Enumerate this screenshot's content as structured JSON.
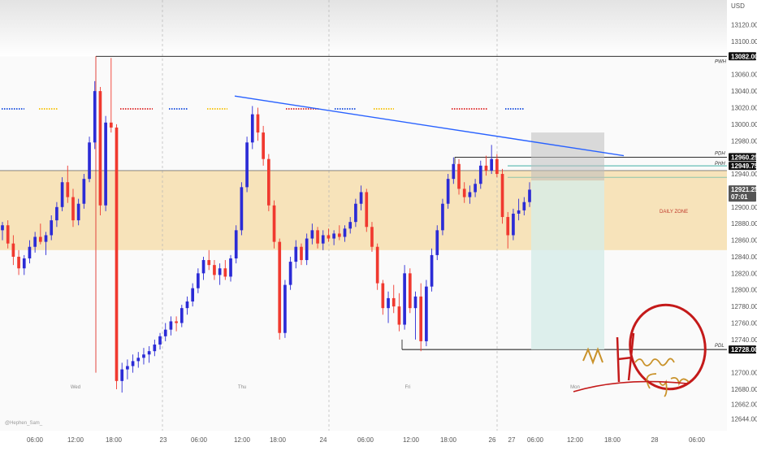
{
  "chart_data": {
    "type": "candlestick",
    "currency": "USD",
    "watermark": "@Hephen_Sam_",
    "colors": {
      "up": "#2b2bd6",
      "down": "#f0392f",
      "zone": "#f6deae",
      "top_band": "#e3e3e3",
      "target_box": "#d6ece8",
      "stop_box": "#bdbdbd",
      "trendline": "#2962ff",
      "signature": "#c41a1a",
      "signature_gold": "#c9922a"
    },
    "y_axis": {
      "min": 12630,
      "max": 13150,
      "tick_labels": [
        "13120.00",
        "13100.00",
        "13082.00",
        "13060.00",
        "13040.00",
        "13020.00",
        "13000.00",
        "12980.00",
        "12960.25",
        "12949.75",
        "12940.00",
        "12921.25",
        "12900.00",
        "12880.00",
        "12860.00",
        "12840.00",
        "12820.00",
        "12800.00",
        "12780.00",
        "12760.00",
        "12740.00",
        "12728.00",
        "12700.00",
        "12680.00",
        "12662.00",
        "12644.00"
      ]
    },
    "x_axis": {
      "tick_labels": [
        "06:00",
        "12:00",
        "18:00",
        "23",
        "06:00",
        "12:00",
        "18:00",
        "24",
        "06:00",
        "12:00",
        "18:00",
        "26",
        "27",
        "06:00",
        "12:00",
        "18:00",
        "28",
        "06:00"
      ],
      "day_labels": [
        "Wed",
        "Thu",
        "Fri",
        "Mon"
      ]
    },
    "levels": [
      {
        "name": "PWH",
        "price": 13082.0,
        "label": "13082.00"
      },
      {
        "name": "PDH",
        "price": 12960.25,
        "label": "12960.25"
      },
      {
        "name": "PHH",
        "price": 12949.75,
        "label": "12949.75"
      },
      {
        "name": "PDL",
        "price": 12728.0,
        "label": "12728.00"
      }
    ],
    "current_price": {
      "price": 12921.25,
      "label": "12921.25",
      "countdown": "07:01"
    },
    "zone": {
      "label": "DAILY ZONE",
      "top": 12944,
      "bottom": 12848
    },
    "trendline": {
      "from": 13034,
      "to": 12962
    },
    "position": {
      "entry": 12932,
      "target": 12728,
      "stop": 12990
    },
    "candles": [
      {
        "o": 12872,
        "h": 12882,
        "l": 12860,
        "c": 12878
      },
      {
        "o": 12878,
        "h": 12884,
        "l": 12850,
        "c": 12856
      },
      {
        "o": 12856,
        "h": 12866,
        "l": 12830,
        "c": 12840
      },
      {
        "o": 12840,
        "h": 12848,
        "l": 12818,
        "c": 12826
      },
      {
        "o": 12826,
        "h": 12842,
        "l": 12818,
        "c": 12838
      },
      {
        "o": 12838,
        "h": 12860,
        "l": 12832,
        "c": 12852
      },
      {
        "o": 12852,
        "h": 12870,
        "l": 12845,
        "c": 12864
      },
      {
        "o": 12864,
        "h": 12880,
        "l": 12855,
        "c": 12858
      },
      {
        "o": 12858,
        "h": 12870,
        "l": 12842,
        "c": 12866
      },
      {
        "o": 12866,
        "h": 12890,
        "l": 12860,
        "c": 12884
      },
      {
        "o": 12884,
        "h": 12906,
        "l": 12876,
        "c": 12900
      },
      {
        "o": 12900,
        "h": 12936,
        "l": 12895,
        "c": 12930
      },
      {
        "o": 12930,
        "h": 12950,
        "l": 12905,
        "c": 12912
      },
      {
        "o": 12912,
        "h": 12922,
        "l": 12876,
        "c": 12884
      },
      {
        "o": 12884,
        "h": 12910,
        "l": 12878,
        "c": 12904
      },
      {
        "o": 12904,
        "h": 12940,
        "l": 12898,
        "c": 12934
      },
      {
        "o": 12934,
        "h": 12985,
        "l": 12930,
        "c": 12978
      },
      {
        "o": 12978,
        "h": 13052,
        "l": 12970,
        "c": 13040
      },
      {
        "o": 13040,
        "h": 13045,
        "l": 12890,
        "c": 12902
      },
      {
        "o": 12902,
        "h": 13010,
        "l": 12895,
        "c": 13002
      },
      {
        "o": 13002,
        "h": 13080,
        "l": 12990,
        "c": 12996
      },
      {
        "o": 12996,
        "h": 13000,
        "l": 12680,
        "c": 12690
      },
      {
        "o": 12690,
        "h": 12712,
        "l": 12676,
        "c": 12704
      },
      {
        "o": 12704,
        "h": 12716,
        "l": 12692,
        "c": 12708
      },
      {
        "o": 12708,
        "h": 12722,
        "l": 12700,
        "c": 12714
      },
      {
        "o": 12714,
        "h": 12725,
        "l": 12706,
        "c": 12718
      },
      {
        "o": 12718,
        "h": 12730,
        "l": 12710,
        "c": 12722
      },
      {
        "o": 12722,
        "h": 12732,
        "l": 12712,
        "c": 12726
      },
      {
        "o": 12726,
        "h": 12740,
        "l": 12720,
        "c": 12734
      },
      {
        "o": 12734,
        "h": 12748,
        "l": 12728,
        "c": 12744
      },
      {
        "o": 12744,
        "h": 12760,
        "l": 12738,
        "c": 12752
      },
      {
        "o": 12752,
        "h": 12768,
        "l": 12745,
        "c": 12762
      },
      {
        "o": 12762,
        "h": 12768,
        "l": 12750,
        "c": 12760
      },
      {
        "o": 12760,
        "h": 12782,
        "l": 12755,
        "c": 12778
      },
      {
        "o": 12778,
        "h": 12792,
        "l": 12770,
        "c": 12786
      },
      {
        "o": 12786,
        "h": 12808,
        "l": 12780,
        "c": 12802
      },
      {
        "o": 12802,
        "h": 12826,
        "l": 12796,
        "c": 12820
      },
      {
        "o": 12820,
        "h": 12840,
        "l": 12812,
        "c": 12836
      },
      {
        "o": 12836,
        "h": 12848,
        "l": 12824,
        "c": 12830
      },
      {
        "o": 12830,
        "h": 12836,
        "l": 12812,
        "c": 12818
      },
      {
        "o": 12818,
        "h": 12832,
        "l": 12806,
        "c": 12826
      },
      {
        "o": 12826,
        "h": 12836,
        "l": 12812,
        "c": 12816
      },
      {
        "o": 12816,
        "h": 12842,
        "l": 12810,
        "c": 12838
      },
      {
        "o": 12838,
        "h": 12878,
        "l": 12832,
        "c": 12872
      },
      {
        "o": 12872,
        "h": 12930,
        "l": 12866,
        "c": 12924
      },
      {
        "o": 12924,
        "h": 12985,
        "l": 12918,
        "c": 12978
      },
      {
        "o": 12978,
        "h": 13022,
        "l": 12970,
        "c": 13012
      },
      {
        "o": 13012,
        "h": 13020,
        "l": 12980,
        "c": 12990
      },
      {
        "o": 12990,
        "h": 12998,
        "l": 12950,
        "c": 12958
      },
      {
        "o": 12958,
        "h": 12964,
        "l": 12895,
        "c": 12902
      },
      {
        "o": 12902,
        "h": 12908,
        "l": 12850,
        "c": 12858
      },
      {
        "o": 12858,
        "h": 12862,
        "l": 12740,
        "c": 12748
      },
      {
        "o": 12748,
        "h": 12812,
        "l": 12742,
        "c": 12806
      },
      {
        "o": 12806,
        "h": 12840,
        "l": 12800,
        "c": 12834
      },
      {
        "o": 12834,
        "h": 12860,
        "l": 12826,
        "c": 12852
      },
      {
        "o": 12852,
        "h": 12856,
        "l": 12830,
        "c": 12836
      },
      {
        "o": 12836,
        "h": 12868,
        "l": 12830,
        "c": 12862
      },
      {
        "o": 12862,
        "h": 12880,
        "l": 12855,
        "c": 12872
      },
      {
        "o": 12872,
        "h": 12876,
        "l": 12850,
        "c": 12856
      },
      {
        "o": 12856,
        "h": 12872,
        "l": 12848,
        "c": 12866
      },
      {
        "o": 12866,
        "h": 12874,
        "l": 12858,
        "c": 12862
      },
      {
        "o": 12862,
        "h": 12872,
        "l": 12854,
        "c": 12868
      },
      {
        "o": 12868,
        "h": 12878,
        "l": 12860,
        "c": 12864
      },
      {
        "o": 12864,
        "h": 12878,
        "l": 12858,
        "c": 12874
      },
      {
        "o": 12874,
        "h": 12888,
        "l": 12868,
        "c": 12882
      },
      {
        "o": 12882,
        "h": 12910,
        "l": 12876,
        "c": 12904
      },
      {
        "o": 12904,
        "h": 12926,
        "l": 12896,
        "c": 12918
      },
      {
        "o": 12918,
        "h": 12922,
        "l": 12870,
        "c": 12876
      },
      {
        "o": 12876,
        "h": 12882,
        "l": 12846,
        "c": 12852
      },
      {
        "o": 12852,
        "h": 12856,
        "l": 12800,
        "c": 12808
      },
      {
        "o": 12808,
        "h": 12812,
        "l": 12770,
        "c": 12778
      },
      {
        "o": 12778,
        "h": 12798,
        "l": 12760,
        "c": 12790
      },
      {
        "o": 12790,
        "h": 12806,
        "l": 12772,
        "c": 12780
      },
      {
        "o": 12780,
        "h": 12796,
        "l": 12750,
        "c": 12758
      },
      {
        "o": 12758,
        "h": 12830,
        "l": 12752,
        "c": 12820
      },
      {
        "o": 12820,
        "h": 12826,
        "l": 12772,
        "c": 12778
      },
      {
        "o": 12778,
        "h": 12798,
        "l": 12740,
        "c": 12792
      },
      {
        "o": 12792,
        "h": 12808,
        "l": 12726,
        "c": 12738
      },
      {
        "o": 12738,
        "h": 12812,
        "l": 12732,
        "c": 12804
      },
      {
        "o": 12804,
        "h": 12850,
        "l": 12798,
        "c": 12842
      },
      {
        "o": 12842,
        "h": 12878,
        "l": 12836,
        "c": 12872
      },
      {
        "o": 12872,
        "h": 12910,
        "l": 12866,
        "c": 12904
      },
      {
        "o": 12904,
        "h": 12940,
        "l": 12898,
        "c": 12934
      },
      {
        "o": 12934,
        "h": 12960,
        "l": 12928,
        "c": 12952
      },
      {
        "o": 12952,
        "h": 12958,
        "l": 12915,
        "c": 12922
      },
      {
        "o": 12922,
        "h": 12930,
        "l": 12905,
        "c": 12912
      },
      {
        "o": 12912,
        "h": 12926,
        "l": 12904,
        "c": 12918
      },
      {
        "o": 12918,
        "h": 12934,
        "l": 12912,
        "c": 12928
      },
      {
        "o": 12928,
        "h": 12956,
        "l": 12922,
        "c": 12950
      },
      {
        "o": 12950,
        "h": 12962,
        "l": 12938,
        "c": 12944
      },
      {
        "o": 12944,
        "h": 12975,
        "l": 12940,
        "c": 12958
      },
      {
        "o": 12958,
        "h": 12964,
        "l": 12936,
        "c": 12940
      },
      {
        "o": 12940,
        "h": 12946,
        "l": 12880,
        "c": 12888
      },
      {
        "o": 12888,
        "h": 12894,
        "l": 12850,
        "c": 12866
      },
      {
        "o": 12866,
        "h": 12898,
        "l": 12860,
        "c": 12892
      },
      {
        "o": 12892,
        "h": 12910,
        "l": 12884,
        "c": 12896
      },
      {
        "o": 12896,
        "h": 12912,
        "l": 12890,
        "c": 12906
      },
      {
        "o": 12906,
        "h": 12930,
        "l": 12900,
        "c": 12921
      }
    ]
  }
}
